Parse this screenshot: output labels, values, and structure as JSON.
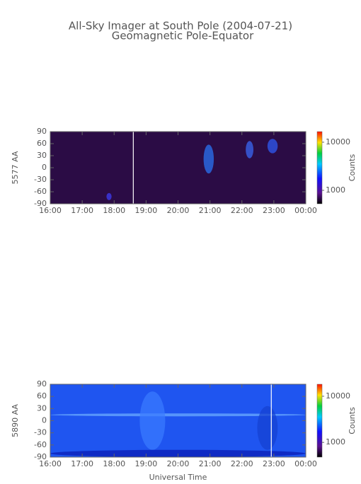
{
  "title": "All-Sky Imager at South Pole (2004-07-21)",
  "subtitle": "Geomagnetic Pole-Equator",
  "chart_data": [
    {
      "type": "heatmap",
      "ylabel": "5577 AA",
      "ylim": [
        -90,
        90
      ],
      "yticks": [
        90,
        60,
        30,
        0,
        -30,
        -60,
        -90
      ],
      "xlim": [
        16,
        24
      ],
      "xticks": [
        {
          "value": 16,
          "label": "16:00"
        },
        {
          "value": 17,
          "label": "17:00"
        },
        {
          "value": 18,
          "label": "18:00"
        },
        {
          "value": 19,
          "label": "19:00"
        },
        {
          "value": 20,
          "label": "20:00"
        },
        {
          "value": 21,
          "label": "21:00"
        },
        {
          "value": 22,
          "label": "22:00"
        },
        {
          "value": 23,
          "label": "23:00"
        },
        {
          "value": 24,
          "label": "00:00"
        }
      ],
      "white_line_x": 18.6,
      "colorbar_label": "Counts",
      "clim": [
        525,
        16600
      ],
      "colorbar_log": true,
      "colorbar_ticks": [
        1000,
        10000
      ],
      "background": "#2b0c45"
    },
    {
      "type": "heatmap",
      "ylabel": "5890 AA",
      "xlabel": "Universal Time",
      "ylim": [
        -90,
        90
      ],
      "yticks": [
        90,
        60,
        30,
        0,
        -30,
        -60,
        -90
      ],
      "xlim": [
        16,
        24
      ],
      "xticks": [
        {
          "value": 16,
          "label": "16:00"
        },
        {
          "value": 17,
          "label": "17:00"
        },
        {
          "value": 18,
          "label": "18:00"
        },
        {
          "value": 19,
          "label": "19:00"
        },
        {
          "value": 20,
          "label": "20:00"
        },
        {
          "value": 21,
          "label": "21:00"
        },
        {
          "value": 22,
          "label": "22:00"
        },
        {
          "value": 23,
          "label": "23:00"
        },
        {
          "value": 24,
          "label": "00:00"
        }
      ],
      "white_line_x": 22.92,
      "colorbar_label": "Counts",
      "clim": [
        480,
        18200
      ],
      "colorbar_log": true,
      "colorbar_ticks": [
        1000,
        10000
      ],
      "background": "#1f55f0"
    }
  ]
}
